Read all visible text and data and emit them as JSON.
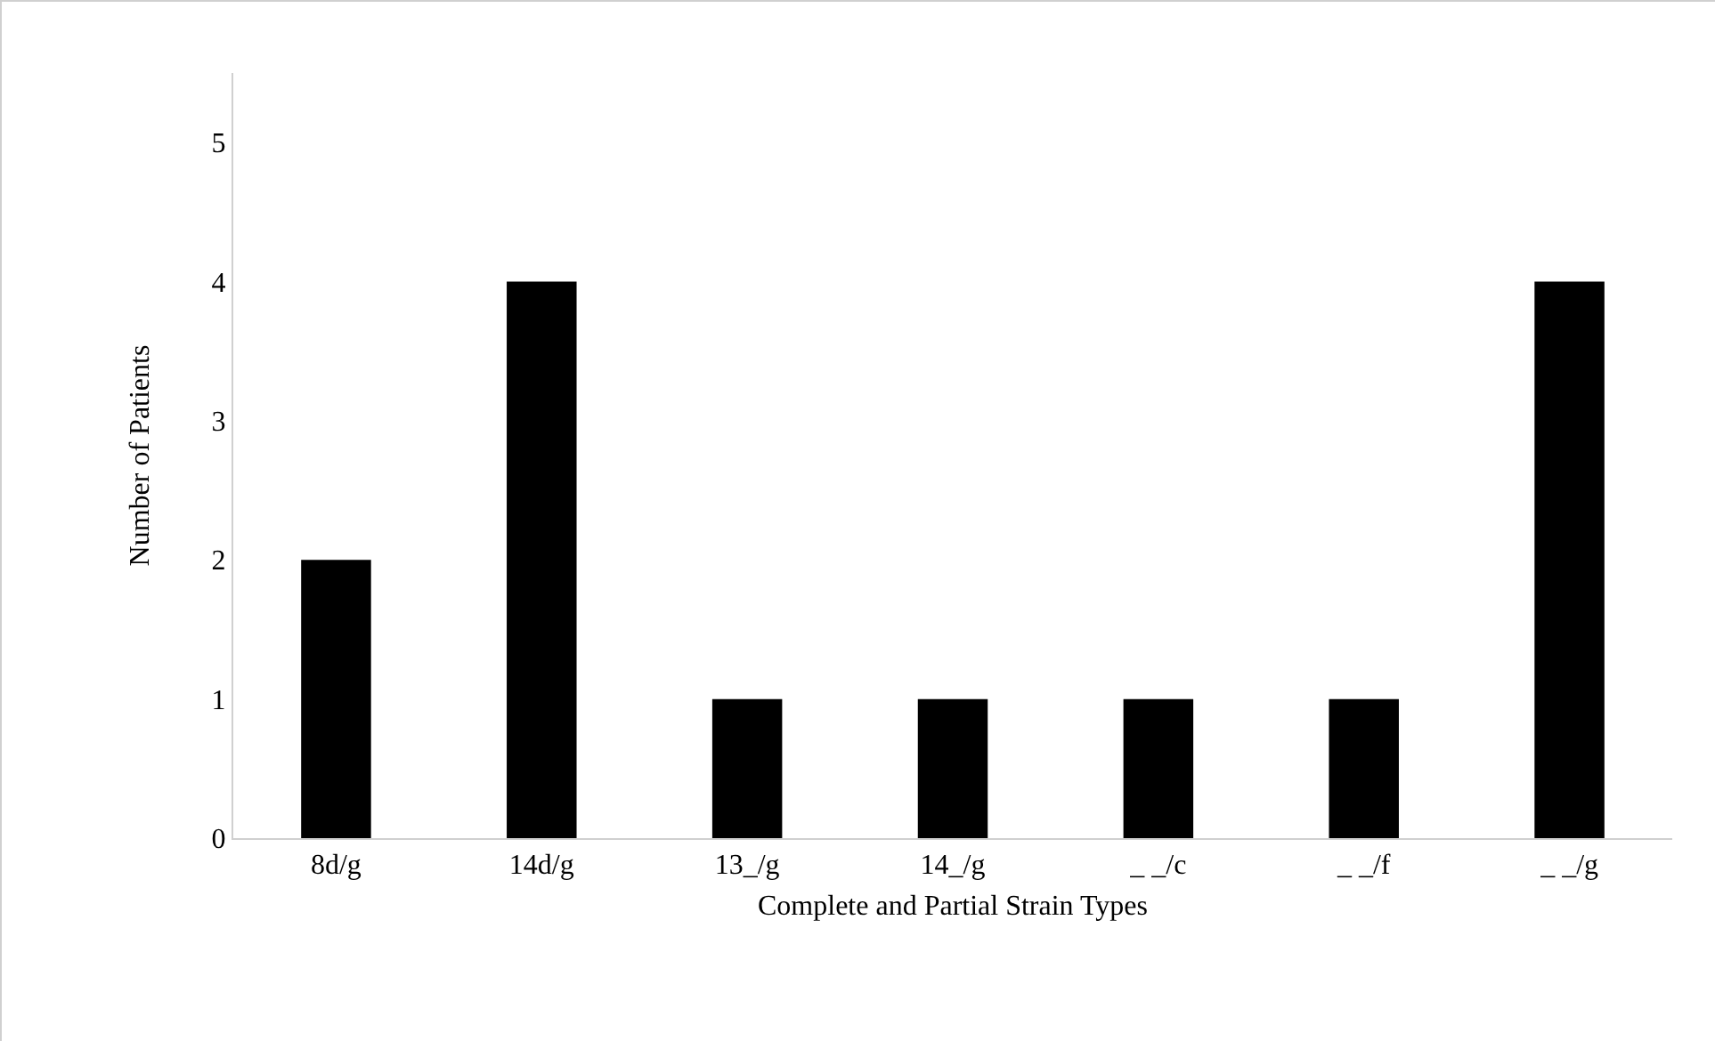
{
  "chart_data": {
    "type": "bar",
    "xlabel": "Complete and Partial Strain Types",
    "ylabel": "Number of Patients",
    "categories": [
      "8d/g",
      "14d/g",
      "13_/g",
      "14_/g",
      "_ _/c",
      "_ _/f",
      "_ _/g"
    ],
    "values": [
      2,
      4,
      1,
      1,
      1,
      1,
      4
    ],
    "color": "#000000",
    "ylim": [
      0,
      5.5
    ],
    "yticks": [
      0,
      1,
      2,
      3,
      4,
      5
    ],
    "grid": false
  }
}
